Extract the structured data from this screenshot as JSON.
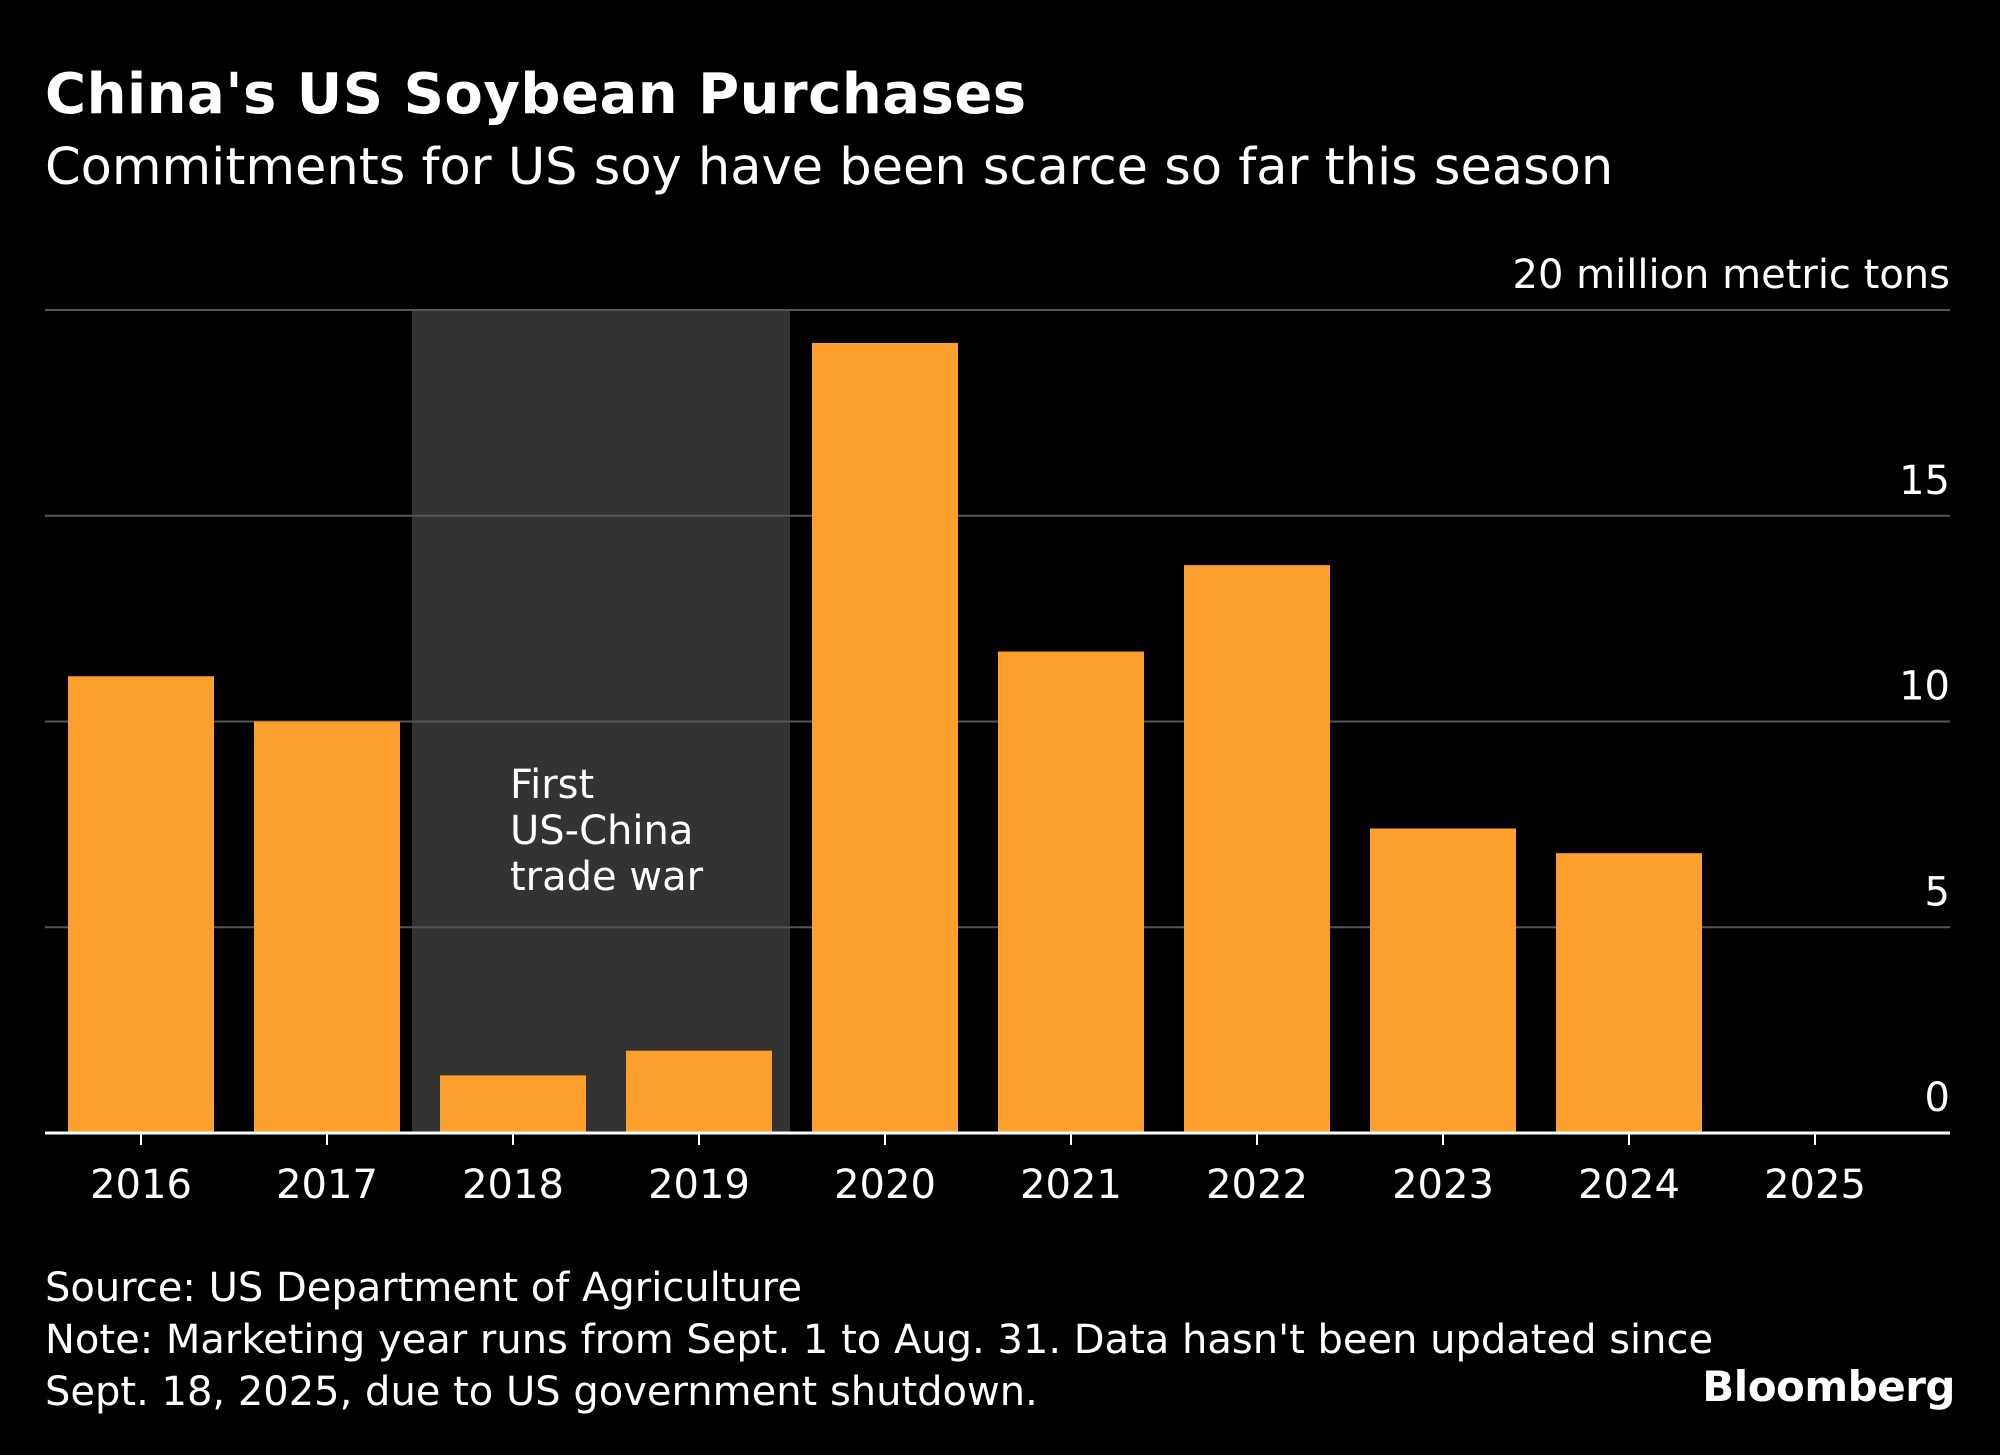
{
  "header": {
    "title": "China's US Soybean Purchases",
    "subtitle": "Commitments for US soy have been scarce so far this season"
  },
  "footer": {
    "source": "Source: US Department of Agriculture",
    "note": "Note: Marketing year runs from Sept. 1 to Aug. 31. Data hasn't been updated since Sept. 18, 2025, due to US government shutdown.",
    "brand": "Bloomberg"
  },
  "colors": {
    "background": "#000000",
    "bar": "#fd9f2d",
    "shade": "#333333",
    "gridline": "#555555",
    "text": "#ffffff"
  },
  "chart_data": {
    "type": "bar",
    "categories": [
      "2016",
      "2017",
      "2018",
      "2019",
      "2020",
      "2021",
      "2022",
      "2023",
      "2024",
      "2025"
    ],
    "values": [
      11.1,
      10.0,
      1.4,
      2.0,
      19.2,
      11.7,
      13.8,
      7.4,
      6.8,
      0
    ],
    "ylim": [
      0,
      20
    ],
    "yticks": [
      0,
      5,
      10,
      15,
      20
    ],
    "ytick_labels": [
      "0",
      "5",
      "10",
      "15",
      "20 million metric tons"
    ],
    "ylabel": "",
    "xlabel": "",
    "grid": true,
    "y_axis_side": "right",
    "shaded_region": {
      "from": "2018",
      "to": "2019",
      "label_lines": [
        "First",
        "US-China",
        "trade war"
      ]
    }
  }
}
